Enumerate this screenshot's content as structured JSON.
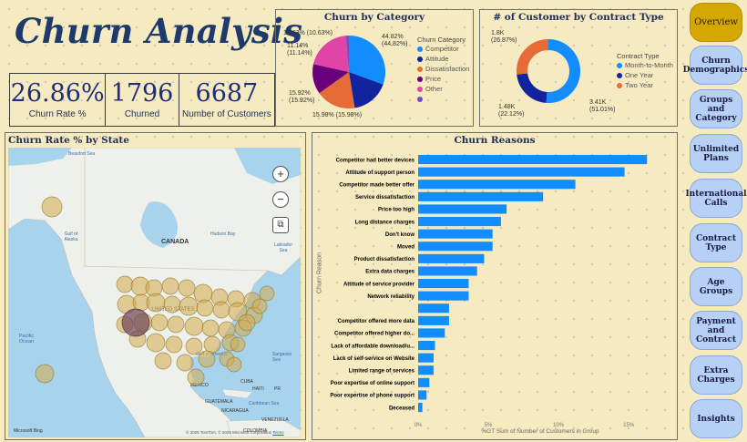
{
  "header": {
    "title": "Churn Analysis"
  },
  "kpis": [
    {
      "value": "26.86%",
      "label": "Churn Rate %"
    },
    {
      "value": "1796",
      "label": "Churned"
    },
    {
      "value": "6687",
      "label": "Number of Customers"
    }
  ],
  "colors": {
    "accent": "#118dff",
    "navy": "#12239e",
    "orange": "#e66c37",
    "purple": "#6b007b",
    "pink": "#e044a7",
    "violet": "#744ec2",
    "nav_active": "#d4a800",
    "nav": "#b6d1f5"
  },
  "category_chart": {
    "title": "Churn by Category",
    "legend_title": "Churn Category",
    "legend": [
      "Competitor",
      "Attitude",
      "Dissatisfaction",
      "Price",
      "Other",
      ""
    ],
    "slice_labels": [
      {
        "text": "44.82%",
        "sub": "(44.82%)"
      },
      {
        "text": "15.98% (15.98%)",
        "sub": ""
      },
      {
        "text": "15.92%",
        "sub": "(15.92%)"
      },
      {
        "text": "11.14%",
        "sub": "(11.14%)"
      },
      {
        "text": "10.63% (10.63%)",
        "sub": ""
      }
    ]
  },
  "contract_chart": {
    "title": "# of Customer by Contract Type",
    "legend_title": "Contract Type",
    "legend": [
      "Month-to-Month",
      "One Year",
      "Two Year"
    ],
    "labels": [
      {
        "text": "1.8K",
        "sub": "(26.87%)"
      },
      {
        "text": "1.48K",
        "sub": "(22.12%)"
      },
      {
        "text": "3.41K",
        "sub": "(51.01%)"
      }
    ]
  },
  "map": {
    "title": "Churn Rate % by State",
    "labels": {
      "canada": "CANADA",
      "united_states": "UNITED STATES",
      "pacific": "Pacific Ocean",
      "gulf_alaska": "Gulf of Alaska",
      "hudson": "Hudson Bay",
      "beaufort": "Beaufort Sea",
      "labrador": "Labrador Sea",
      "sargasso": "Sargasso Sea",
      "gulf_america": "Gulf of America",
      "cuba": "CUBA",
      "haiti": "HAITI",
      "pr": "PR",
      "guatemala": "GUATEMALA",
      "nicaragua": "NICARAGUA",
      "caribbean": "Caribbean Sea",
      "venezuela": "VENEZUELA",
      "colombia": "COLOMBIA",
      "mexico": "MEXICO"
    },
    "attribution": "© 2025 TomTom, © 2025 Microsoft Corporation",
    "terms": "Terms",
    "brand": "Microsoft Bing",
    "controls": [
      "+",
      "−",
      "⧉"
    ]
  },
  "chart_data": {
    "type": "bar",
    "title": "Churn Reasons",
    "xlabel": "%GT Sum of Number of Customers in Group",
    "ylabel": "Churn Reason",
    "x_ticks": [
      "0%",
      "5%",
      "10%",
      "15%"
    ],
    "xlim": [
      0,
      17
    ],
    "categories": [
      "Competitor had better devices",
      "Attitude of support person",
      "Competitor made better offer",
      "Service dissatisfaction",
      "Price too high",
      "Long distance charges",
      "Don't know",
      "Moved",
      "Product dissatisfaction",
      "Extra data charges",
      "Attitude of service provider",
      "Network reliability",
      "",
      "Competitor offered more data",
      "Competitor offered higher do...",
      "Lack of affordable download/u...",
      "Lack of self-service on Website",
      "Limited range of services",
      "Poor expertise of online support",
      "Poor expertise of phone support",
      "Deceased"
    ],
    "values": [
      16.3,
      14.7,
      11.2,
      8.9,
      6.3,
      5.9,
      5.3,
      5.3,
      4.7,
      4.2,
      3.6,
      3.6,
      2.2,
      2.2,
      1.9,
      1.2,
      1.1,
      1.1,
      0.8,
      0.6,
      0.3
    ]
  }
}
